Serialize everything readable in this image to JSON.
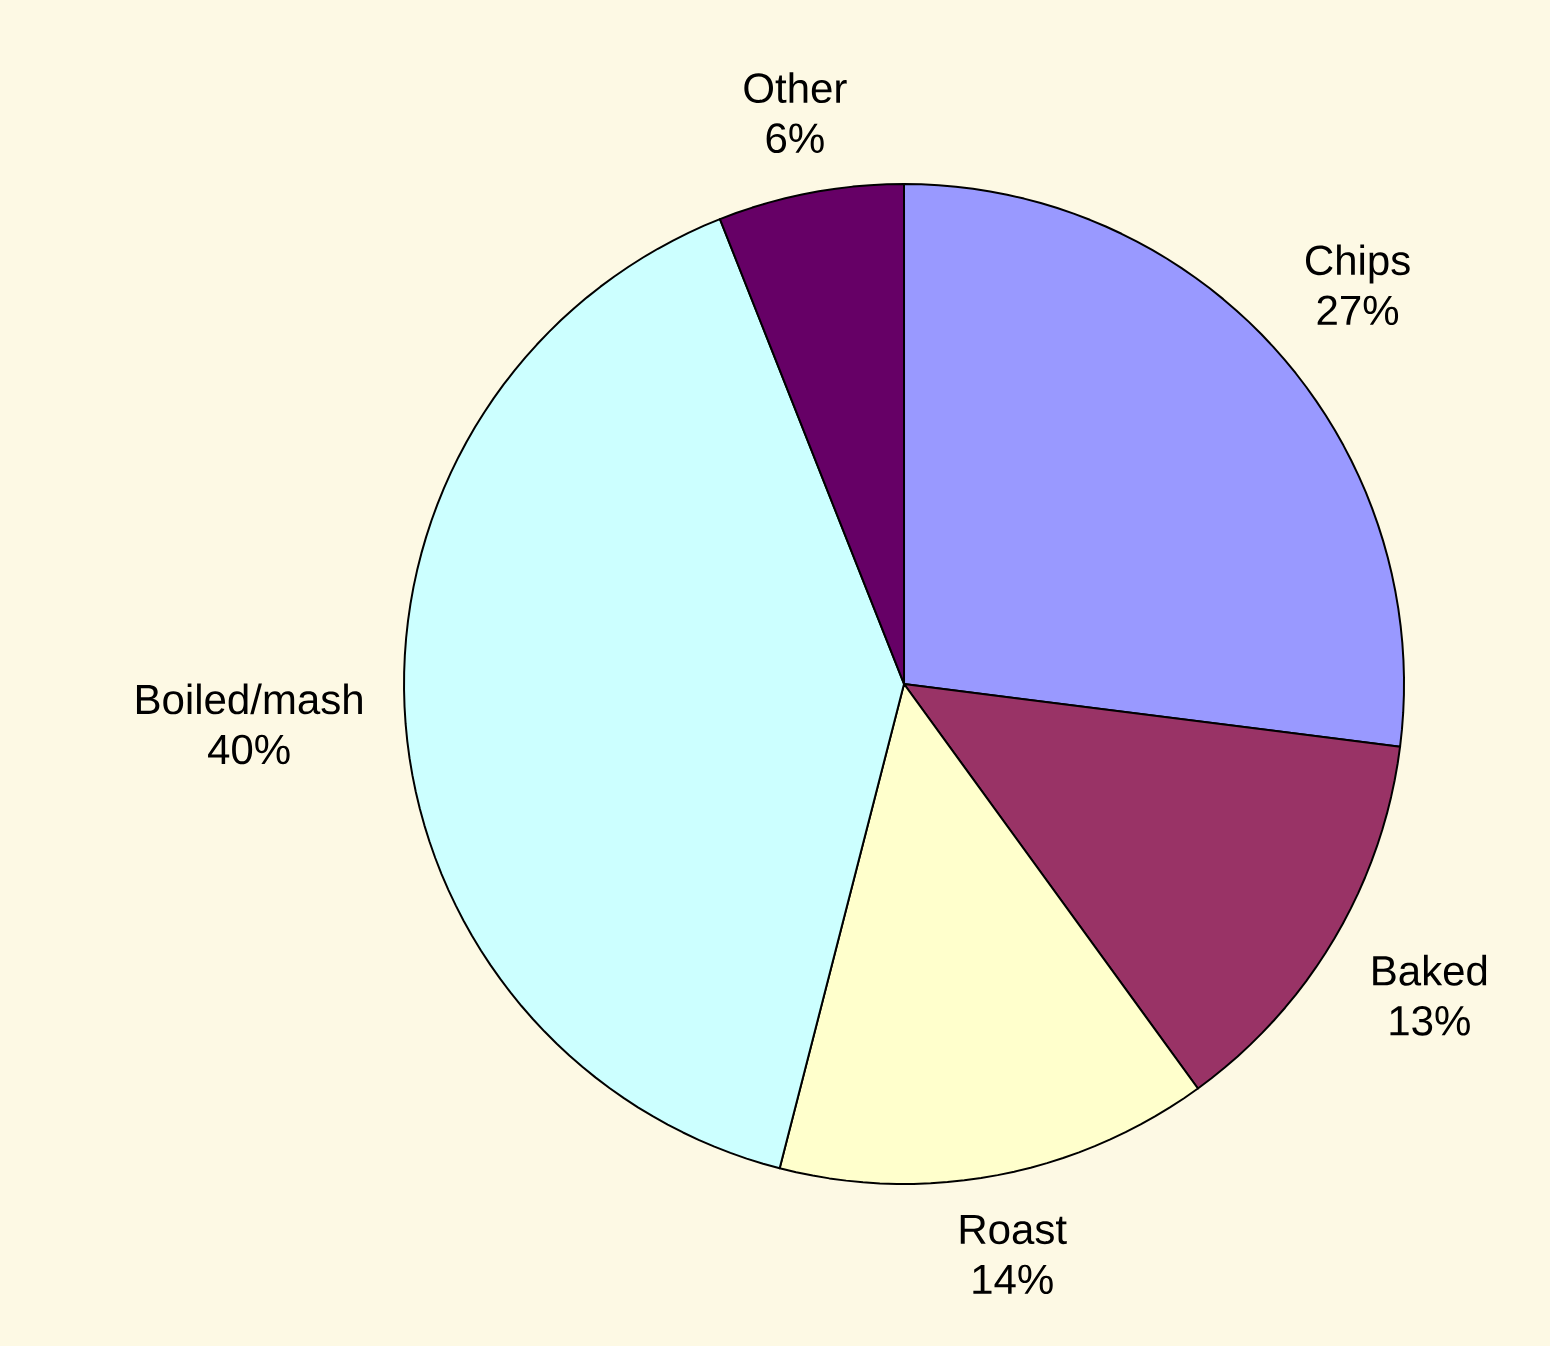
{
  "chart_data": {
    "type": "pie",
    "categories": [
      "Chips",
      "Baked",
      "Roast",
      "Boiled/mash",
      "Other"
    ],
    "values": [
      27,
      13,
      14,
      40,
      6
    ],
    "colors": [
      "#9999ff",
      "#993366",
      "#ffffcc",
      "#ccffff",
      "#660066"
    ],
    "value_labels": [
      "27%",
      "13%",
      "14%",
      "40%",
      "6%"
    ]
  }
}
